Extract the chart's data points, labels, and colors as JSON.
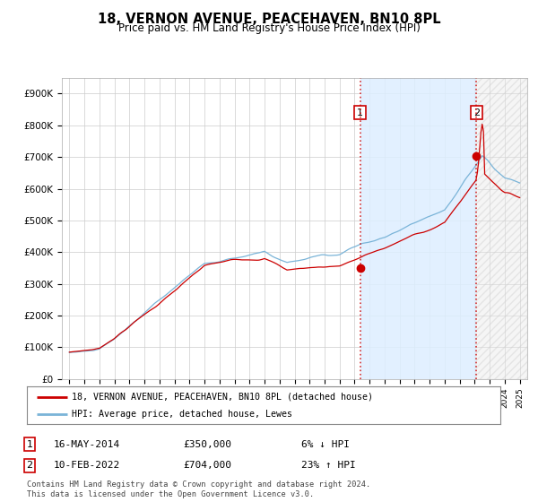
{
  "title": "18, VERNON AVENUE, PEACEHAVEN, BN10 8PL",
  "subtitle": "Price paid vs. HM Land Registry's House Price Index (HPI)",
  "legend_line1": "18, VERNON AVENUE, PEACEHAVEN, BN10 8PL (detached house)",
  "legend_line2": "HPI: Average price, detached house, Lewes",
  "annotation1_date": "16-MAY-2014",
  "annotation1_price": "£350,000",
  "annotation1_pct": "6% ↓ HPI",
  "annotation2_date": "10-FEB-2022",
  "annotation2_price": "£704,000",
  "annotation2_pct": "23% ↑ HPI",
  "footer": "Contains HM Land Registry data © Crown copyright and database right 2024.\nThis data is licensed under the Open Government Licence v3.0.",
  "hpi_color": "#7ab4d8",
  "price_color": "#cc0000",
  "dashed_color": "#cc0000",
  "shade_color": "#ddeeff",
  "ylim_min": 0,
  "ylim_max": 950000,
  "yticks": [
    0,
    100000,
    200000,
    300000,
    400000,
    500000,
    600000,
    700000,
    800000,
    900000
  ],
  "ytick_labels": [
    "£0",
    "£100K",
    "£200K",
    "£300K",
    "£400K",
    "£500K",
    "£600K",
    "£700K",
    "£800K",
    "£900K"
  ],
  "purchase1_year": 2014.37,
  "purchase1_value": 350000,
  "purchase2_year": 2022.11,
  "purchase2_value": 704000,
  "bg_color": "#ffffff",
  "grid_color": "#cccccc",
  "xmin": 1995,
  "xmax": 2025
}
